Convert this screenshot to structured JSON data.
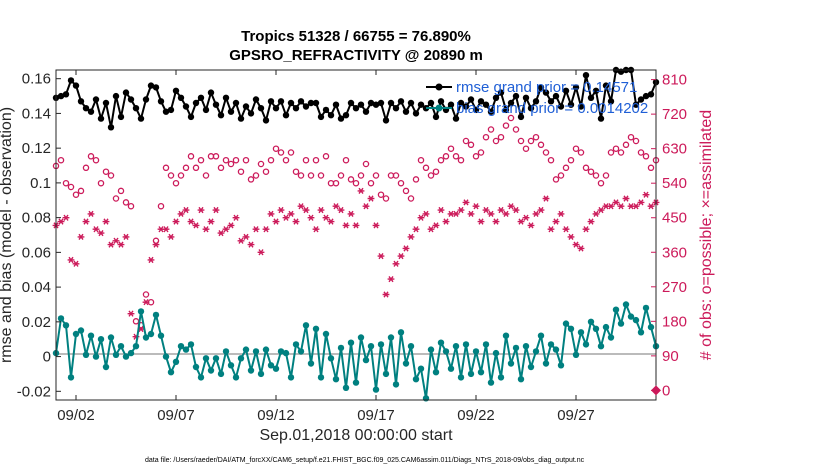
{
  "chart_data": {
    "type": "line",
    "title": "Tropics 51328 / 66755 = 76.890%",
    "subtitle": "GPSRO_REFRACTIVITY @ 20890 m",
    "xlabel": "Sep.01,2018 00:00:00 start",
    "ylabel": "rmse and bias (model - observation)",
    "ylabel_right": "# of obs: o=possible; ×=assimilated",
    "footer": "data file: /Users/raeder/DAI/ATM_forcXX/CAM6_setup/f.e21.FHIST_BGC.f09_025.CAM6assim.011/Diags_NTrS_2018-09/obs_diag_output.nc",
    "xlim": [
      1.0,
      31.0
    ],
    "ylim": [
      -0.025,
      0.165
    ],
    "ylim_right": [
      -25,
      835
    ],
    "x_ticks": [
      2,
      7,
      12,
      17,
      22,
      27
    ],
    "x_ticklabels": [
      "09/02",
      "09/07",
      "09/12",
      "09/17",
      "09/22",
      "09/27"
    ],
    "y_ticks": [
      -0.02,
      0,
      0.02,
      0.04,
      0.06,
      0.08,
      0.1,
      0.12,
      0.14,
      0.16
    ],
    "y_ticklabels": [
      "-0.02",
      "0",
      "0.02",
      "0.04",
      "0.06",
      "0.08",
      "0.1",
      "0.12",
      "0.14",
      "0.16"
    ],
    "y_ticks_right": [
      0,
      90,
      180,
      270,
      360,
      450,
      540,
      630,
      720,
      810
    ],
    "y_ticklabels_right": [
      "0",
      "90",
      "180",
      "270",
      "360",
      "450",
      "540",
      "630",
      "720",
      "810"
    ],
    "legend": [
      {
        "label": "rmse grand prior = 0.14571",
        "color": "#000000"
      },
      {
        "label": "bias grand prior = 0.0014202",
        "color": "#008080"
      }
    ],
    "legend_position": "top-right",
    "colors": {
      "rmse": "#000000",
      "bias": "#008080",
      "obs": "#cc1a5a",
      "zero_line": "#bbbbbb",
      "legend_text": "#1f5fd6"
    },
    "series": [
      {
        "name": "rmse",
        "x": [
          1.0,
          1.25,
          1.5,
          1.75,
          2.0,
          2.25,
          2.5,
          2.75,
          3.0,
          3.25,
          3.5,
          3.75,
          4.0,
          4.25,
          4.5,
          4.75,
          5.0,
          5.25,
          5.5,
          5.75,
          6.0,
          6.25,
          6.5,
          6.75,
          7.0,
          7.25,
          7.5,
          7.75,
          8.0,
          8.25,
          8.5,
          8.75,
          9.0,
          9.25,
          9.5,
          9.75,
          10.0,
          10.25,
          10.5,
          10.75,
          11.0,
          11.25,
          11.5,
          11.75,
          12.0,
          12.25,
          12.5,
          12.75,
          13.0,
          13.25,
          13.5,
          13.75,
          14.0,
          14.25,
          14.5,
          14.75,
          15.0,
          15.25,
          15.5,
          15.75,
          16.0,
          16.25,
          16.5,
          16.75,
          17.0,
          17.25,
          17.5,
          17.75,
          18.0,
          18.25,
          18.5,
          18.75,
          19.0,
          19.25,
          19.5,
          19.75,
          20.0,
          20.25,
          20.5,
          20.75,
          21.0,
          21.25,
          21.5,
          21.75,
          22.0,
          22.25,
          22.5,
          22.75,
          23.0,
          23.25,
          23.5,
          23.75,
          24.0,
          24.25,
          24.5,
          24.75,
          25.0,
          25.25,
          25.5,
          25.75,
          26.0,
          26.25,
          26.5,
          26.75,
          27.0,
          27.25,
          27.5,
          27.75,
          28.0,
          28.25,
          28.5,
          28.75,
          29.0,
          29.25,
          29.5,
          29.75,
          30.0,
          30.25,
          30.5,
          30.75,
          31.0
        ],
        "values": [
          0.149,
          0.15,
          0.151,
          0.159,
          0.156,
          0.147,
          0.143,
          0.141,
          0.148,
          0.137,
          0.146,
          0.132,
          0.15,
          0.138,
          0.152,
          0.148,
          0.143,
          0.137,
          0.148,
          0.156,
          0.155,
          0.147,
          0.141,
          0.142,
          0.153,
          0.149,
          0.144,
          0.138,
          0.146,
          0.149,
          0.142,
          0.152,
          0.145,
          0.139,
          0.149,
          0.141,
          0.146,
          0.137,
          0.144,
          0.14,
          0.148,
          0.143,
          0.136,
          0.147,
          0.143,
          0.147,
          0.139,
          0.146,
          0.143,
          0.147,
          0.144,
          0.146,
          0.146,
          0.138,
          0.142,
          0.139,
          0.145,
          0.137,
          0.139,
          0.146,
          0.143,
          0.145,
          0.141,
          0.146,
          0.145,
          0.146,
          0.136,
          0.146,
          0.143,
          0.147,
          0.141,
          0.146,
          0.14,
          0.145,
          0.143,
          0.146,
          0.138,
          0.147,
          0.142,
          0.145,
          0.137,
          0.146,
          0.144,
          0.148,
          0.142,
          0.147,
          0.145,
          0.141,
          0.149,
          0.152,
          0.142,
          0.146,
          0.15,
          0.138,
          0.149,
          0.143,
          0.147,
          0.155,
          0.152,
          0.147,
          0.15,
          0.144,
          0.153,
          0.145,
          0.155,
          0.144,
          0.162,
          0.149,
          0.153,
          0.137,
          0.156,
          0.147,
          0.165,
          0.164,
          0.165,
          0.165,
          0.145,
          0.148,
          0.15,
          0.151,
          0.158
        ]
      },
      {
        "name": "bias",
        "x": [
          1.0,
          1.25,
          1.5,
          1.75,
          2.0,
          2.25,
          2.5,
          2.75,
          3.0,
          3.25,
          3.5,
          3.75,
          4.0,
          4.25,
          4.5,
          4.75,
          5.0,
          5.25,
          5.5,
          5.75,
          6.0,
          6.25,
          6.5,
          6.75,
          7.0,
          7.25,
          7.5,
          7.75,
          8.0,
          8.25,
          8.5,
          8.75,
          9.0,
          9.25,
          9.5,
          9.75,
          10.0,
          10.25,
          10.5,
          10.75,
          11.0,
          11.25,
          11.5,
          11.75,
          12.0,
          12.25,
          12.5,
          12.75,
          13.0,
          13.25,
          13.5,
          13.75,
          14.0,
          14.25,
          14.5,
          14.75,
          15.0,
          15.25,
          15.5,
          15.75,
          16.0,
          16.25,
          16.5,
          16.75,
          17.0,
          17.25,
          17.5,
          17.75,
          18.0,
          18.25,
          18.5,
          18.75,
          19.0,
          19.25,
          19.5,
          19.75,
          20.0,
          20.25,
          20.5,
          20.75,
          21.0,
          21.25,
          21.5,
          21.75,
          22.0,
          22.25,
          22.5,
          22.75,
          23.0,
          23.25,
          23.5,
          23.75,
          24.0,
          24.25,
          24.5,
          24.75,
          25.0,
          25.25,
          25.5,
          25.75,
          26.0,
          26.25,
          26.5,
          26.75,
          27.0,
          27.25,
          27.5,
          27.75,
          28.0,
          28.25,
          28.5,
          28.75,
          29.0,
          29.25,
          29.5,
          29.75,
          30.0,
          30.25,
          30.5,
          30.75,
          31.0
        ],
        "values": [
          0.002,
          0.022,
          0.018,
          -0.012,
          0.013,
          0.015,
          0.001,
          0.012,
          0.0,
          0.01,
          -0.006,
          0.011,
          0.001,
          0.006,
          0.0,
          0.002,
          0.006,
          0.026,
          0.011,
          0.013,
          0.024,
          0.012,
          0.0,
          -0.009,
          -0.003,
          0.006,
          0.004,
          0.007,
          -0.006,
          -0.012,
          -0.001,
          -0.008,
          -0.001,
          -0.01,
          0.003,
          -0.005,
          -0.012,
          -0.001,
          0.004,
          -0.008,
          0.003,
          -0.01,
          0.004,
          -0.005,
          -0.007,
          0.003,
          0.002,
          -0.012,
          0.007,
          0.003,
          0.018,
          -0.004,
          0.016,
          -0.012,
          0.013,
          -0.001,
          -0.013,
          0.005,
          -0.018,
          0.008,
          -0.015,
          0.011,
          -0.002,
          0.006,
          -0.019,
          0.007,
          -0.01,
          0.011,
          -0.016,
          0.014,
          -0.004,
          0.006,
          -0.013,
          -0.007,
          -0.024,
          0.004,
          -0.009,
          0.008,
          0.003,
          -0.007,
          0.006,
          -0.012,
          0.007,
          -0.01,
          0.003,
          -0.009,
          0.007,
          -0.015,
          0.002,
          -0.012,
          0.012,
          -0.004,
          0.005,
          -0.013,
          0.006,
          -0.006,
          0.003,
          0.012,
          -0.004,
          0.007,
          0.004,
          -0.005,
          0.019,
          0.016,
          0.001,
          0.014,
          0.007,
          0.02,
          0.016,
          0.006,
          0.017,
          0.011,
          0.027,
          0.019,
          0.03,
          0.023,
          0.021,
          0.014,
          0.028,
          0.017,
          0.006
        ]
      },
      {
        "name": "obs possible",
        "marker": "o",
        "x": [
          1.0,
          1.25,
          1.5,
          1.75,
          2.0,
          2.25,
          2.5,
          2.75,
          3.0,
          3.25,
          3.5,
          3.75,
          4.0,
          4.25,
          4.5,
          4.75,
          5.0,
          5.25,
          5.5,
          5.75,
          6.0,
          6.25,
          6.5,
          6.75,
          7.0,
          7.25,
          7.5,
          7.75,
          8.0,
          8.25,
          8.5,
          8.75,
          9.0,
          9.25,
          9.5,
          9.75,
          10.0,
          10.25,
          10.5,
          10.75,
          11.0,
          11.25,
          11.5,
          11.75,
          12.0,
          12.25,
          12.5,
          12.75,
          13.0,
          13.25,
          13.5,
          13.75,
          14.0,
          14.25,
          14.5,
          14.75,
          15.0,
          15.25,
          15.5,
          15.75,
          16.0,
          16.25,
          16.5,
          16.75,
          17.0,
          17.25,
          17.5,
          17.75,
          18.0,
          18.25,
          18.5,
          18.75,
          19.0,
          19.25,
          19.5,
          19.75,
          20.0,
          20.25,
          20.5,
          20.75,
          21.0,
          21.25,
          21.5,
          21.75,
          22.0,
          22.25,
          22.5,
          22.75,
          23.0,
          23.25,
          23.5,
          23.75,
          24.0,
          24.25,
          24.5,
          24.75,
          25.0,
          25.25,
          25.5,
          25.75,
          26.0,
          26.25,
          26.5,
          26.75,
          27.0,
          27.25,
          27.5,
          27.75,
          28.0,
          28.25,
          28.5,
          28.75,
          29.0,
          29.25,
          29.5,
          29.75,
          30.0,
          30.25,
          30.5,
          30.75,
          31.0
        ],
        "values": [
          585,
          600,
          540,
          530,
          510,
          520,
          580,
          610,
          600,
          540,
          570,
          560,
          500,
          520,
          490,
          480,
          180,
          170,
          250,
          230,
          390,
          480,
          580,
          560,
          540,
          560,
          580,
          610,
          580,
          600,
          560,
          610,
          610,
          580,
          600,
          590,
          600,
          570,
          600,
          550,
          560,
          590,
          570,
          600,
          630,
          620,
          600,
          620,
          570,
          560,
          600,
          560,
          600,
          560,
          610,
          540,
          540,
          560,
          600,
          550,
          540,
          560,
          590,
          540,
          560,
          510,
          500,
          560,
          560,
          540,
          520,
          500,
          550,
          600,
          580,
          560,
          570,
          600,
          610,
          630,
          610,
          600,
          650,
          640,
          610,
          620,
          660,
          680,
          650,
          660,
          690,
          710,
          680,
          650,
          630,
          650,
          660,
          640,
          620,
          600,
          550,
          560,
          580,
          600,
          630,
          620,
          580,
          570,
          560,
          540,
          560,
          620,
          630,
          620,
          640,
          660,
          650,
          620,
          610,
          580,
          600
        ]
      },
      {
        "name": "obs assimilated",
        "marker": "x",
        "x": [
          1.0,
          1.25,
          1.5,
          1.75,
          2.0,
          2.25,
          2.5,
          2.75,
          3.0,
          3.25,
          3.5,
          3.75,
          4.0,
          4.25,
          4.5,
          4.75,
          5.0,
          5.25,
          5.5,
          5.75,
          6.0,
          6.25,
          6.5,
          6.75,
          7.0,
          7.25,
          7.5,
          7.75,
          8.0,
          8.25,
          8.5,
          8.75,
          9.0,
          9.25,
          9.5,
          9.75,
          10.0,
          10.25,
          10.5,
          10.75,
          11.0,
          11.25,
          11.5,
          11.75,
          12.0,
          12.25,
          12.5,
          12.75,
          13.0,
          13.25,
          13.5,
          13.75,
          14.0,
          14.25,
          14.5,
          14.75,
          15.0,
          15.25,
          15.5,
          15.75,
          16.0,
          16.25,
          16.5,
          16.75,
          17.0,
          17.25,
          17.5,
          17.75,
          18.0,
          18.25,
          18.5,
          18.75,
          19.0,
          19.25,
          19.5,
          19.75,
          20.0,
          20.25,
          20.5,
          20.75,
          21.0,
          21.25,
          21.5,
          21.75,
          22.0,
          22.25,
          22.5,
          22.75,
          23.0,
          23.25,
          23.5,
          23.75,
          24.0,
          24.25,
          24.5,
          24.75,
          25.0,
          25.25,
          25.5,
          25.75,
          26.0,
          26.25,
          26.5,
          26.75,
          27.0,
          27.25,
          27.5,
          27.75,
          28.0,
          28.25,
          28.5,
          28.75,
          29.0,
          29.25,
          29.5,
          29.75,
          30.0,
          30.25,
          30.5,
          30.75,
          31.0
        ],
        "values": [
          430,
          440,
          450,
          340,
          330,
          400,
          440,
          460,
          420,
          410,
          440,
          380,
          390,
          380,
          400,
          200,
          140,
          160,
          230,
          340,
          380,
          420,
          420,
          400,
          440,
          460,
          470,
          440,
          430,
          470,
          420,
          440,
          470,
          410,
          420,
          430,
          450,
          390,
          400,
          380,
          420,
          360,
          420,
          460,
          440,
          470,
          450,
          460,
          440,
          480,
          470,
          450,
          420,
          470,
          450,
          440,
          480,
          470,
          430,
          460,
          430,
          520,
          480,
          500,
          430,
          350,
          250,
          290,
          330,
          350,
          370,
          400,
          420,
          450,
          460,
          420,
          430,
          470,
          440,
          460,
          460,
          470,
          490,
          460,
          480,
          440,
          470,
          460,
          440,
          470,
          460,
          480,
          470,
          440,
          450,
          430,
          460,
          470,
          500,
          420,
          440,
          460,
          420,
          400,
          380,
          370,
          420,
          440,
          460,
          470,
          480,
          480,
          490,
          480,
          500,
          480,
          480,
          490,
          510,
          480,
          490
        ]
      }
    ]
  }
}
